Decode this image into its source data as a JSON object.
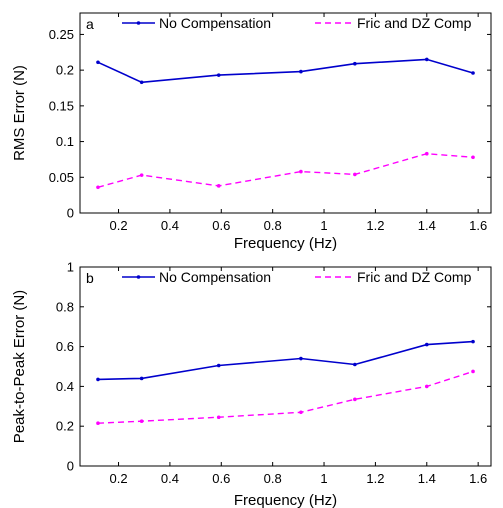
{
  "colors": {
    "no_compensation": "#0000cc",
    "fric_dz_comp": "#ff00ff",
    "axes": "#000000",
    "background": "#ffffff"
  },
  "chart_data": [
    {
      "type": "line",
      "panel_label": "a",
      "xlabel": "Frequency (Hz)",
      "ylabel": "RMS Error (N)",
      "xlim": [
        0.05,
        1.65
      ],
      "ylim": [
        0,
        0.28
      ],
      "xticks": [
        0.2,
        0.4,
        0.6,
        0.8,
        1,
        1.2,
        1.4,
        1.6
      ],
      "xtick_labels": [
        "0.2",
        "0.4",
        "0.6",
        "0.8",
        "1",
        "1.2",
        "1.4",
        "1.6"
      ],
      "yticks": [
        0,
        0.05,
        0.1,
        0.15,
        0.2,
        0.25
      ],
      "ytick_labels": [
        "0",
        "0.05",
        "0.1",
        "0.15",
        "0.2",
        "0.25"
      ],
      "grid": false,
      "legend": {
        "placement": "top",
        "entries": [
          "No Compensation",
          "Fric and DZ Comp"
        ]
      },
      "x": [
        0.12,
        0.29,
        0.59,
        0.91,
        1.12,
        1.4,
        1.58
      ],
      "series": [
        {
          "name": "No Compensation",
          "style": "solid",
          "values": [
            0.211,
            0.183,
            0.193,
            0.198,
            0.209,
            0.215,
            0.196
          ]
        },
        {
          "name": "Fric and DZ Comp",
          "style": "dashed",
          "values": [
            0.036,
            0.053,
            0.038,
            0.058,
            0.054,
            0.083,
            0.078
          ]
        }
      ]
    },
    {
      "type": "line",
      "panel_label": "b",
      "xlabel": "Frequency (Hz)",
      "ylabel": "Peak-to-Peak Error (N)",
      "xlim": [
        0.05,
        1.65
      ],
      "ylim": [
        0,
        1
      ],
      "xticks": [
        0.2,
        0.4,
        0.6,
        0.8,
        1,
        1.2,
        1.4,
        1.6
      ],
      "xtick_labels": [
        "0.2",
        "0.4",
        "0.6",
        "0.8",
        "1",
        "1.2",
        "1.4",
        "1.6"
      ],
      "yticks": [
        0,
        0.2,
        0.4,
        0.6,
        0.8,
        1
      ],
      "ytick_labels": [
        "0",
        "0.2",
        "0.4",
        "0.6",
        "0.8",
        "1"
      ],
      "grid": false,
      "legend": {
        "placement": "top",
        "entries": [
          "No Compensation",
          "Fric and DZ Comp"
        ]
      },
      "x": [
        0.12,
        0.29,
        0.59,
        0.91,
        1.12,
        1.4,
        1.58
      ],
      "series": [
        {
          "name": "No Compensation",
          "style": "solid",
          "values": [
            0.435,
            0.44,
            0.505,
            0.54,
            0.51,
            0.61,
            0.625
          ]
        },
        {
          "name": "Fric and DZ Comp",
          "style": "dashed",
          "values": [
            0.215,
            0.225,
            0.245,
            0.27,
            0.335,
            0.4,
            0.475
          ]
        }
      ]
    }
  ]
}
